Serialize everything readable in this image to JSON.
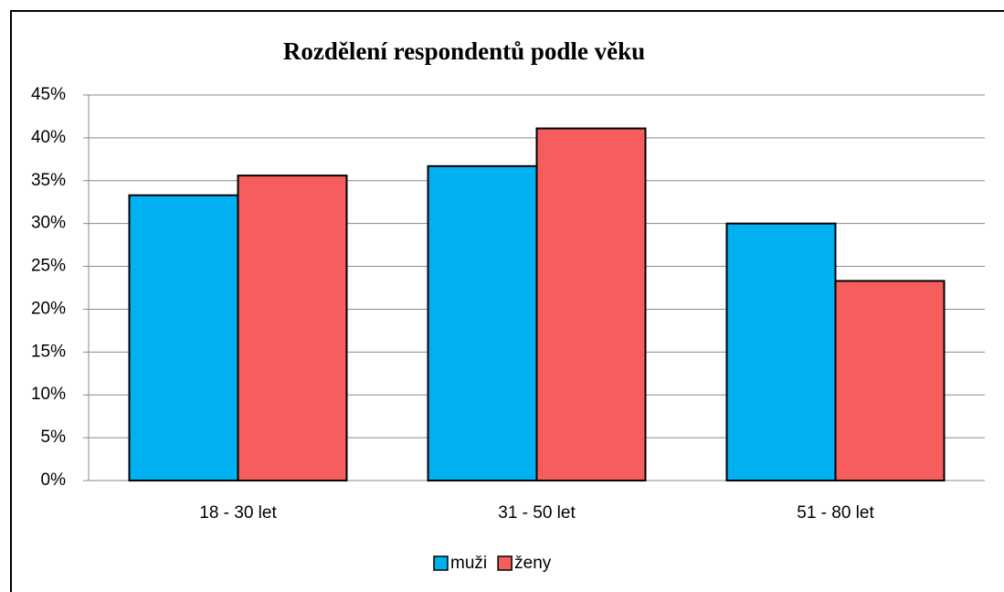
{
  "chart_data": {
    "type": "bar",
    "title": "Rozdělení respondentů podle věku",
    "categories": [
      "18 - 30 let",
      "31 - 50 let",
      "51 - 80 let"
    ],
    "series": [
      {
        "name": "muži",
        "color": "#00b0f0",
        "values": [
          33.3,
          36.7,
          30
        ]
      },
      {
        "name": "ženy",
        "color": "#f65e5e",
        "values": [
          35.6,
          41.1,
          23.3
        ]
      }
    ],
    "ylim": [
      0,
      45
    ],
    "yticks": [
      {
        "value": 0,
        "label": "0%"
      },
      {
        "value": 5,
        "label": "5%"
      },
      {
        "value": 10,
        "label": "10%"
      },
      {
        "value": 15,
        "label": "15%"
      },
      {
        "value": 20,
        "label": "20%"
      },
      {
        "value": 25,
        "label": "25%"
      },
      {
        "value": 30,
        "label": "30%"
      },
      {
        "value": 35,
        "label": "35%"
      },
      {
        "value": 40,
        "label": "40%"
      },
      {
        "value": 45,
        "label": "45%"
      }
    ],
    "grid": true,
    "legend": "bottom"
  }
}
